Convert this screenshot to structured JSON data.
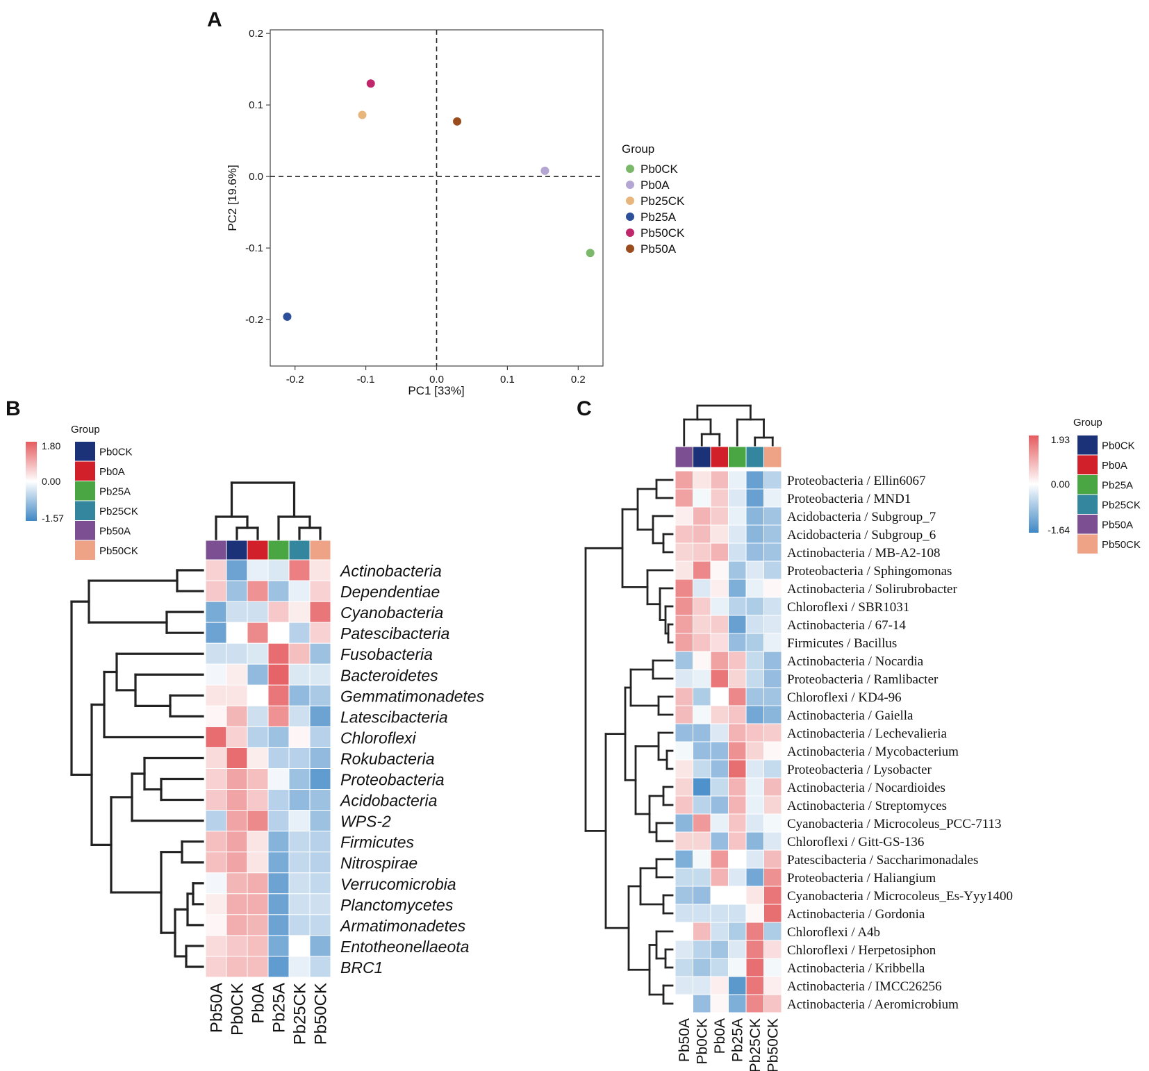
{
  "panel_labels": [
    "A",
    "B",
    "C"
  ],
  "colors": {
    "Pb0CK_pca": "#7cb86a",
    "Pb0A_pca": "#b3a6d3",
    "Pb25CK_pca": "#e8b67c",
    "Pb25A_pca": "#2d4f9a",
    "Pb50CK_pca": "#c0266a",
    "Pb50A_pca": "#9a4c1c",
    "Pb0CK": "#1b3178",
    "Pb0A": "#d2202a",
    "Pb25A": "#4aa642",
    "Pb25CK": "#33869e",
    "Pb50A": "#7b4f92",
    "Pb50CK": "#eea386",
    "scale_high": "#e55b5e",
    "scale_mid": "#ffffff",
    "scale_low": "#3f87c5"
  },
  "chart_data": [
    {
      "type": "scatter",
      "panel": "A",
      "xlabel": "PC1 [33%]",
      "ylabel": "PC2 [19.6%]",
      "xlim": [
        -0.235,
        0.235
      ],
      "ylim": [
        -0.265,
        0.205
      ],
      "xticks": [
        -0.2,
        -0.1,
        0.0,
        0.1,
        0.2
      ],
      "xtick_labels": [
        "-0.2",
        "-0.1",
        "0.0",
        "0.1",
        "0.2"
      ],
      "yticks": [
        0.2,
        0.1,
        0.0,
        -0.1,
        -0.2
      ],
      "ytick_labels": [
        "0.2",
        "0.1",
        "0.0",
        "-0.1",
        "-0.2"
      ],
      "reference_lines": {
        "x": 0,
        "y": 0
      },
      "legend_title": "Group",
      "points": [
        {
          "group": "Pb0CK",
          "x": 0.217,
          "y": -0.107
        },
        {
          "group": "Pb0A",
          "x": 0.153,
          "y": 0.008
        },
        {
          "group": "Pb25CK",
          "x": -0.105,
          "y": 0.086
        },
        {
          "group": "Pb25A",
          "x": -0.211,
          "y": -0.196
        },
        {
          "group": "Pb50CK",
          "x": -0.093,
          "y": 0.13
        },
        {
          "group": "Pb50A",
          "x": 0.029,
          "y": 0.077
        }
      ]
    },
    {
      "type": "heatmap",
      "panel": "B",
      "legend_title": "Group",
      "legend_groups": [
        "Pb0CK",
        "Pb0A",
        "Pb25A",
        "Pb25CK",
        "Pb50A",
        "Pb50CK"
      ],
      "scale_labels": [
        "1.80",
        "0.00",
        "-1.57"
      ],
      "scale_range": [
        -1.57,
        1.8
      ],
      "columns": [
        "Pb50A",
        "Pb0CK",
        "Pb0A",
        "Pb25A",
        "Pb25CK",
        "Pb50CK"
      ],
      "rows": [
        "Actinobacteria",
        "Dependentiae",
        "Cyanobacteria",
        "Patescibacteria",
        "Fusobacteria",
        "Bacteroidetes",
        "Gemmatimonadetes",
        "Latescibacteria",
        "Chloroflexi",
        "Rokubacteria",
        "Proteobacteria",
        "Acidobacteria",
        "WPS-2",
        "Firmicutes",
        "Nitrospirae",
        "Verrucomicrobia",
        "Planctomycetes",
        "Armatimonadetes",
        "Entotheonellaeota",
        "BRC1"
      ],
      "values": [
        [
          0.5,
          -1.2,
          -0.2,
          -0.3,
          1.4,
          0.3
        ],
        [
          0.6,
          -0.8,
          1.2,
          -0.8,
          -0.2,
          0.5
        ],
        [
          -1.1,
          -0.4,
          -0.4,
          0.6,
          0.2,
          1.5
        ],
        [
          -1.2,
          0.0,
          1.3,
          0.0,
          -0.6,
          0.5
        ],
        [
          -0.4,
          -0.4,
          -0.3,
          1.6,
          0.7,
          -0.8
        ],
        [
          -0.1,
          0.2,
          -0.9,
          1.7,
          -0.3,
          -0.3
        ],
        [
          0.3,
          0.3,
          0.0,
          1.5,
          -0.9,
          -0.7
        ],
        [
          0.1,
          0.8,
          -0.4,
          1.2,
          -0.4,
          -1.2
        ],
        [
          1.6,
          0.5,
          -0.6,
          -0.8,
          0.1,
          -0.6
        ],
        [
          0.4,
          1.6,
          0.2,
          -0.6,
          -0.6,
          -0.9
        ],
        [
          0.5,
          1.0,
          0.7,
          -0.1,
          -0.8,
          -1.3
        ],
        [
          0.6,
          1.0,
          0.6,
          -0.6,
          -0.9,
          -0.8
        ],
        [
          -0.6,
          1.0,
          1.3,
          -0.6,
          -0.2,
          -0.8
        ],
        [
          0.7,
          1.0,
          0.3,
          -1.0,
          -0.5,
          -0.6
        ],
        [
          0.7,
          1.0,
          0.3,
          -1.1,
          -0.5,
          -0.6
        ],
        [
          -0.1,
          0.8,
          0.9,
          -1.2,
          -0.4,
          -0.5
        ],
        [
          0.2,
          0.9,
          0.9,
          -1.2,
          -0.4,
          -0.4
        ],
        [
          0.1,
          0.9,
          0.8,
          -1.2,
          -0.5,
          -0.5
        ],
        [
          0.4,
          0.6,
          0.7,
          -1.1,
          0.0,
          -1.0
        ],
        [
          0.5,
          0.7,
          0.7,
          -1.3,
          -0.2,
          -0.5
        ]
      ]
    },
    {
      "type": "heatmap",
      "panel": "C",
      "legend_title": "Group",
      "legend_groups": [
        "Pb0CK",
        "Pb0A",
        "Pb25A",
        "Pb25CK",
        "Pb50A",
        "Pb50CK"
      ],
      "scale_labels": [
        "1.93",
        "0.00",
        "-1.64"
      ],
      "scale_range": [
        -1.64,
        1.93
      ],
      "columns": [
        "Pb50A",
        "Pb0CK",
        "Pb0A",
        "Pb25A",
        "Pb25CK",
        "Pb50CK"
      ],
      "rows": [
        "Proteobacteria / Ellin6067",
        "Proteobacteria / MND1",
        "Acidobacteria / Subgroup_7",
        "Acidobacteria / Subgroup_6",
        "Actinobacteria / MB-A2-108",
        "Proteobacteria / Sphingomonas",
        "Actinobacteria / Solirubrobacter",
        "Chloroflexi / SBR1031",
        "Actinobacteria / 67-14",
        "Firmicutes / Bacillus",
        "Actinobacteria / Nocardia",
        "Proteobacteria / Ramlibacter",
        "Chloroflexi / KD4-96",
        "Actinobacteria / Gaiella",
        "Actinobacteria / Lechevalieria",
        "Actinobacteria / Mycobacterium",
        "Proteobacteria / Lysobacter",
        "Actinobacteria / Nocardioides",
        "Actinobacteria / Streptomyces",
        "Cyanobacteria / Microcoleus_PCC-7113",
        "Chloroflexi / Gitt-GS-136",
        "Patescibacteria / Saccharimonadales",
        "Proteobacteria / Haliangium",
        "Cyanobacteria / Microcoleus_Es-Yyy1400",
        "Actinobacteria / Gordonia",
        "Chloroflexi / A4b",
        "Chloroflexi / Herpetosiphon",
        "Actinobacteria / Kribbella",
        "Actinobacteria / IMCC26256",
        "Actinobacteria / Aeromicrobium"
      ],
      "values": [
        [
          1.1,
          0.3,
          0.8,
          -0.2,
          -1.3,
          -0.6
        ],
        [
          1.1,
          -0.1,
          0.6,
          -0.3,
          -1.3,
          -0.2
        ],
        [
          0.2,
          0.9,
          0.6,
          -0.2,
          -1.0,
          -0.8
        ],
        [
          0.7,
          0.8,
          0.3,
          -0.3,
          -1.0,
          -0.8
        ],
        [
          0.5,
          0.6,
          0.9,
          -0.4,
          -0.9,
          -0.8
        ],
        [
          0.3,
          1.4,
          0.1,
          -0.8,
          -0.3,
          -0.6
        ],
        [
          1.4,
          -0.3,
          0.2,
          -1.1,
          -0.2,
          0.1
        ],
        [
          1.3,
          0.6,
          -0.2,
          -0.6,
          -0.7,
          -0.4
        ],
        [
          1.1,
          0.5,
          0.6,
          -1.3,
          -0.4,
          -0.3
        ],
        [
          1.1,
          0.7,
          0.4,
          -0.9,
          -0.7,
          -0.2
        ],
        [
          -0.8,
          0.1,
          1.1,
          0.7,
          -0.5,
          -0.9
        ],
        [
          -0.3,
          -0.2,
          1.6,
          0.5,
          -0.5,
          -0.9
        ],
        [
          0.8,
          -0.7,
          0.0,
          1.4,
          -0.8,
          -0.8
        ],
        [
          0.8,
          -0.1,
          0.5,
          0.7,
          -1.2,
          -1.0
        ],
        [
          -0.9,
          -0.9,
          -0.3,
          0.9,
          0.7,
          0.6
        ],
        [
          -0.1,
          -0.9,
          -0.9,
          1.3,
          0.5,
          0.1
        ],
        [
          0.3,
          -0.5,
          -0.9,
          1.7,
          -0.3,
          -0.5
        ],
        [
          0.5,
          -1.5,
          -0.5,
          0.9,
          -0.2,
          0.8
        ],
        [
          0.7,
          -0.6,
          -0.9,
          0.9,
          -0.2,
          0.5
        ],
        [
          -1.0,
          1.2,
          -0.2,
          0.7,
          -0.3,
          -0.1
        ],
        [
          0.5,
          0.5,
          -0.9,
          0.7,
          -1.0,
          -0.3
        ],
        [
          -1.1,
          -0.1,
          1.2,
          0.0,
          -0.3,
          0.8
        ],
        [
          -0.5,
          -0.5,
          0.9,
          -0.3,
          -1.2,
          1.3
        ],
        [
          -0.8,
          -0.9,
          0.0,
          0.0,
          0.3,
          1.6
        ],
        [
          -0.4,
          -0.4,
          -0.4,
          -0.4,
          0.1,
          1.7
        ],
        [
          0.0,
          0.8,
          -0.4,
          -0.7,
          1.5,
          -0.7
        ],
        [
          -0.3,
          -0.6,
          -0.8,
          -0.3,
          1.5,
          0.4
        ],
        [
          -0.5,
          -0.8,
          -0.5,
          -0.1,
          1.7,
          -0.1
        ],
        [
          -0.3,
          -0.3,
          0.2,
          -1.4,
          1.6,
          0.2
        ],
        [
          0.0,
          -0.9,
          0.1,
          -1.1,
          1.4,
          0.7
        ]
      ]
    }
  ]
}
